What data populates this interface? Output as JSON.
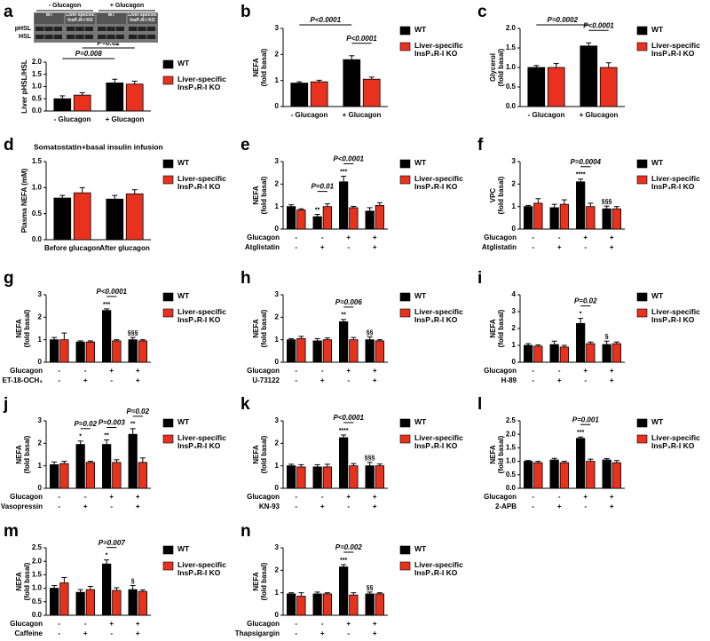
{
  "chart_data": [
    {
      "type": "bar",
      "panel": "a",
      "ylabel": "Liver pHSL/HSL",
      "blot": {
        "groups": [
          "- Glucagon",
          "+ Glucagon"
        ],
        "lanes": [
          "WT",
          "Liver-specific\nInsP₃R-I KO",
          "WT",
          "Liver-specific\nInsP₃R-I KO"
        ],
        "bands": [
          "pHSL",
          "HSL"
        ]
      },
      "categories": [
        "- Glucagon",
        "+ Glucagon"
      ],
      "series": [
        {
          "name": "WT",
          "color": "#000000",
          "values": [
            0.5,
            1.15
          ],
          "errors": [
            0.12,
            0.15
          ]
        },
        {
          "name": "Liver-specific\nInsP₃R-I KO",
          "color": "#e8321e",
          "values": [
            0.65,
            1.1
          ],
          "errors": [
            0.1,
            0.12
          ]
        }
      ],
      "group_pvalues": [
        "P=0.008",
        "P=0.02"
      ],
      "ylim": [
        0,
        2
      ],
      "yticks": [
        {
          "value": 0,
          "label": "0.0"
        },
        0.5,
        {
          "value": 1,
          "label": "1.0"
        },
        1.5,
        {
          "value": 2,
          "label": "2.0"
        }
      ]
    },
    {
      "type": "bar",
      "panel": "b",
      "ylabel": "NEFA",
      "ylabel_unit": "(fold basal)",
      "categories": [
        "- Glucagon",
        "+ Glucagon"
      ],
      "series": [
        {
          "name": "WT",
          "color": "#000000",
          "values": [
            0.9,
            1.8
          ],
          "errors": [
            0.05,
            0.15
          ]
        },
        {
          "name": "Liver-specific\nInsP₃R-I KO",
          "color": "#e8321e",
          "values": [
            0.95,
            1.05
          ],
          "errors": [
            0.06,
            0.08
          ]
        }
      ],
      "group_pvalues": [
        "P<0.0001",
        null
      ],
      "category_pvalues": [
        null,
        "P<0.0001"
      ],
      "ylim": [
        0,
        3
      ],
      "yticks": [
        0,
        1,
        2,
        3
      ]
    },
    {
      "type": "bar",
      "panel": "c",
      "ylabel": "Glycerol",
      "ylabel_unit": "(fold basal)",
      "categories": [
        "- Glucagon",
        "+ Glucagon"
      ],
      "series": [
        {
          "name": "WT",
          "color": "#000000",
          "values": [
            1.0,
            1.55
          ],
          "errors": [
            0.05,
            0.08
          ]
        },
        {
          "name": "Liver-specific\nInsP₃R-I KO",
          "color": "#e8321e",
          "values": [
            1.0,
            1.0
          ],
          "errors": [
            0.1,
            0.12
          ]
        }
      ],
      "group_pvalues": [
        "P=0.0002",
        null
      ],
      "category_pvalues": [
        null,
        "P<0.0001"
      ],
      "ylim": [
        0,
        2
      ],
      "yticks": [
        {
          "value": 0,
          "label": "0.0"
        },
        0.5,
        {
          "value": 1,
          "label": "1.0"
        },
        1.5,
        {
          "value": 2,
          "label": "2.0"
        }
      ]
    },
    {
      "type": "bar",
      "panel": "d",
      "title": "Somatostatin+basal insulin infusion",
      "ylabel": "Plasma NEFA (mM)",
      "categories": [
        "Before glucagon",
        "After glucagon"
      ],
      "series": [
        {
          "name": "WT",
          "color": "#000000",
          "values": [
            0.8,
            0.78
          ],
          "errors": [
            0.05,
            0.07
          ]
        },
        {
          "name": "Liver-specific\nInsP₃R-I KO",
          "color": "#e8321e",
          "values": [
            0.9,
            0.88
          ],
          "errors": [
            0.1,
            0.08
          ]
        }
      ],
      "ylim": [
        0,
        1.5
      ],
      "yticks": [
        {
          "value": 0,
          "label": "0.0"
        },
        0.5,
        {
          "value": 1,
          "label": "1.0"
        },
        1.5
      ]
    },
    {
      "type": "bar",
      "panel": "e",
      "ylabel": "NEFA",
      "ylabel_unit": "(fold basal)",
      "conditions": [
        {
          "name": "Glucagon",
          "signs": [
            "-",
            "-",
            "+",
            "+"
          ]
        },
        {
          "name": "Atglistatin",
          "signs": [
            "-",
            "+",
            "-",
            "+"
          ]
        }
      ],
      "series": [
        {
          "name": "WT",
          "color": "#000000",
          "values": [
            1.0,
            0.55,
            2.1,
            0.8
          ],
          "errors": [
            0.08,
            0.1,
            0.25,
            0.15
          ],
          "sig": [
            null,
            "**",
            "***",
            null
          ]
        },
        {
          "name": "Liver-specific\nInsP₃R-I KO",
          "color": "#e8321e",
          "values": [
            0.85,
            1.0,
            0.95,
            1.05
          ],
          "errors": [
            0.05,
            0.12,
            0.06,
            0.12
          ]
        }
      ],
      "category_pvalues": [
        null,
        "P=0.01",
        "P<0.0001",
        null
      ],
      "ylim": [
        0,
        3
      ],
      "yticks": [
        0,
        1,
        2,
        3
      ]
    },
    {
      "type": "bar",
      "panel": "f",
      "ylabel": "VPC",
      "ylabel_unit": "(fold basal)",
      "conditions": [
        {
          "name": "Glucagon",
          "signs": [
            "-",
            "-",
            "+",
            "+"
          ]
        },
        {
          "name": "Atglistatin",
          "signs": [
            "-",
            "+",
            "-",
            "+"
          ]
        }
      ],
      "series": [
        {
          "name": "WT",
          "color": "#000000",
          "values": [
            1.0,
            0.95,
            2.1,
            0.9
          ],
          "errors": [
            0.05,
            0.15,
            0.12,
            0.12
          ],
          "sig": [
            null,
            null,
            "****",
            "§§§"
          ]
        },
        {
          "name": "Liver-specific\nInsP₃R-I KO",
          "color": "#e8321e",
          "values": [
            1.15,
            1.1,
            1.0,
            0.9
          ],
          "errors": [
            0.2,
            0.2,
            0.15,
            0.1
          ]
        }
      ],
      "category_pvalues": [
        null,
        null,
        "P=0.0004",
        null
      ],
      "ylim": [
        0,
        3
      ],
      "yticks": [
        0,
        1,
        2,
        3
      ]
    },
    {
      "type": "bar",
      "panel": "g",
      "ylabel": "NEFA",
      "ylabel_unit": "(fold basal)",
      "conditions": [
        {
          "name": "Glucagon",
          "signs": [
            "-",
            "-",
            "+",
            "+"
          ]
        },
        {
          "name": "ET-18-OCH₃",
          "signs": [
            "-",
            "+",
            "-",
            "+"
          ]
        }
      ],
      "series": [
        {
          "name": "WT",
          "color": "#000000",
          "values": [
            1.0,
            0.9,
            2.3,
            1.0
          ],
          "errors": [
            0.1,
            0.05,
            0.07,
            0.1
          ],
          "sig": [
            null,
            null,
            "***",
            "§§§"
          ]
        },
        {
          "name": "Liver-specific\nInsP₃R-I KO",
          "color": "#e8321e",
          "values": [
            1.0,
            0.9,
            0.95,
            0.95
          ],
          "errors": [
            0.3,
            0.05,
            0.05,
            0.05
          ]
        }
      ],
      "category_pvalues": [
        null,
        null,
        "P<0.0001",
        null
      ],
      "ylim": [
        0,
        3
      ],
      "yticks": [
        0,
        1,
        2,
        3
      ]
    },
    {
      "type": "bar",
      "panel": "h",
      "ylabel": "NEFA",
      "ylabel_unit": "(fold basal)",
      "conditions": [
        {
          "name": "Glucagon",
          "signs": [
            "-",
            "-",
            "+",
            "+"
          ]
        },
        {
          "name": "U-73122",
          "signs": [
            "-",
            "+",
            "-",
            "+"
          ]
        }
      ],
      "series": [
        {
          "name": "WT",
          "color": "#000000",
          "values": [
            1.0,
            0.95,
            1.8,
            1.0
          ],
          "errors": [
            0.05,
            0.1,
            0.1,
            0.12
          ],
          "sig": [
            null,
            null,
            "**",
            "§§"
          ]
        },
        {
          "name": "Liver-specific\nInsP₃R-I KO",
          "color": "#e8321e",
          "values": [
            1.05,
            1.0,
            1.0,
            0.95
          ],
          "errors": [
            0.1,
            0.08,
            0.1,
            0.05
          ]
        }
      ],
      "category_pvalues": [
        null,
        null,
        "P=0.006",
        null
      ],
      "ylim": [
        0,
        3
      ],
      "yticks": [
        0,
        1,
        2,
        3
      ]
    },
    {
      "type": "bar",
      "panel": "i",
      "ylabel": "NEFA",
      "ylabel_unit": "(fold basal)",
      "conditions": [
        {
          "name": "Glucagon",
          "signs": [
            "-",
            "-",
            "+",
            "+"
          ]
        },
        {
          "name": "H-89",
          "signs": [
            "-",
            "+",
            "-",
            "+"
          ]
        }
      ],
      "series": [
        {
          "name": "WT",
          "color": "#000000",
          "values": [
            1.0,
            1.05,
            2.3,
            1.05
          ],
          "errors": [
            0.1,
            0.2,
            0.3,
            0.2
          ],
          "sig": [
            null,
            null,
            "*",
            "§"
          ]
        },
        {
          "name": "Liver-specific\nInsP₃R-I KO",
          "color": "#e8321e",
          "values": [
            0.95,
            0.9,
            1.1,
            1.1
          ],
          "errors": [
            0.08,
            0.1,
            0.1,
            0.1
          ]
        }
      ],
      "category_pvalues": [
        null,
        null,
        "P=0.02",
        null
      ],
      "ylim": [
        0,
        4
      ],
      "yticks": [
        0,
        1,
        2,
        3,
        4
      ]
    },
    {
      "type": "bar",
      "panel": "j",
      "ylabel": "NEFA",
      "ylabel_unit": "(fold basal)",
      "conditions": [
        {
          "name": "Glucagon",
          "signs": [
            "-",
            "-",
            "+",
            "+"
          ]
        },
        {
          "name": "Vasopressin",
          "signs": [
            "-",
            "+",
            "-",
            "+"
          ]
        }
      ],
      "series": [
        {
          "name": "WT",
          "color": "#000000",
          "values": [
            1.05,
            1.95,
            1.95,
            2.4
          ],
          "errors": [
            0.12,
            0.15,
            0.2,
            0.25
          ],
          "sig": [
            null,
            "*",
            "**",
            "**"
          ]
        },
        {
          "name": "Liver-specific\nInsP₃R-I KO",
          "color": "#e8321e",
          "values": [
            1.1,
            1.15,
            1.15,
            1.15
          ],
          "errors": [
            0.1,
            0.05,
            0.12,
            0.2
          ]
        }
      ],
      "category_pvalues": [
        null,
        "P=0.02",
        "P=0.003",
        "P=0.02"
      ],
      "ylim": [
        0,
        3
      ],
      "yticks": [
        0,
        1,
        2,
        3
      ]
    },
    {
      "type": "bar",
      "panel": "k",
      "ylabel": "NEFA",
      "ylabel_unit": "(fold basal)",
      "conditions": [
        {
          "name": "Glucagon",
          "signs": [
            "-",
            "-",
            "+",
            "+"
          ]
        },
        {
          "name": "KN-93",
          "signs": [
            "-",
            "+",
            "-",
            "+"
          ]
        }
      ],
      "series": [
        {
          "name": "WT",
          "color": "#000000",
          "values": [
            1.0,
            0.95,
            2.25,
            1.0
          ],
          "errors": [
            0.07,
            0.1,
            0.12,
            0.15
          ],
          "sig": [
            null,
            null,
            "****",
            "§§§"
          ]
        },
        {
          "name": "Liver-specific\nInsP₃R-I KO",
          "color": "#e8321e",
          "values": [
            0.95,
            0.95,
            1.0,
            1.0
          ],
          "errors": [
            0.1,
            0.12,
            0.1,
            0.08
          ]
        }
      ],
      "category_pvalues": [
        null,
        null,
        "P<0.0001",
        null
      ],
      "ylim": [
        0,
        3
      ],
      "yticks": [
        0,
        1,
        2,
        3
      ]
    },
    {
      "type": "bar",
      "panel": "l",
      "ylabel": "NEFA",
      "ylabel_unit": "(fold basal)",
      "conditions": [
        {
          "name": "Glucagon",
          "signs": [
            "-",
            "-",
            "+",
            "+"
          ]
        },
        {
          "name": "2-APB",
          "signs": [
            "-",
            "+",
            "-",
            "+"
          ]
        }
      ],
      "series": [
        {
          "name": "WT",
          "color": "#000000",
          "values": [
            1.0,
            1.05,
            1.85,
            1.05
          ],
          "errors": [
            0.03,
            0.06,
            0.05,
            0.05
          ],
          "sig": [
            null,
            null,
            "***",
            null
          ]
        },
        {
          "name": "Liver-specific\nInsP₃R-I KO",
          "color": "#e8321e",
          "values": [
            0.95,
            0.95,
            1.0,
            0.95
          ],
          "errors": [
            0.05,
            0.05,
            0.08,
            0.08
          ]
        }
      ],
      "category_pvalues": [
        null,
        null,
        "P=0.001",
        null
      ],
      "ylim": [
        0,
        2.5
      ],
      "yticks": [
        {
          "value": 0,
          "label": "0.0"
        },
        0.5,
        {
          "value": 1,
          "label": "1.0"
        },
        1.5,
        {
          "value": 2,
          "label": "2.0"
        },
        2.5
      ]
    },
    {
      "type": "bar",
      "panel": "m",
      "ylabel": "NEFA",
      "ylabel_unit": "(fold basal)",
      "conditions": [
        {
          "name": "Glucagon",
          "signs": [
            "-",
            "-",
            "+",
            "+"
          ]
        },
        {
          "name": "Caffeine",
          "signs": [
            "-",
            "+",
            "-",
            "+"
          ]
        }
      ],
      "series": [
        {
          "name": "WT",
          "color": "#000000",
          "values": [
            1.0,
            0.85,
            1.9,
            0.95
          ],
          "errors": [
            0.1,
            0.1,
            0.15,
            0.15
          ],
          "sig": [
            null,
            null,
            "*",
            "§"
          ]
        },
        {
          "name": "Liver-specific\nInsP₃R-I KO",
          "color": "#e8321e",
          "values": [
            1.2,
            0.95,
            0.92,
            0.88
          ],
          "errors": [
            0.2,
            0.12,
            0.1,
            0.06
          ]
        }
      ],
      "category_pvalues": [
        null,
        null,
        "P=0.007",
        null
      ],
      "ylim": [
        0,
        2.5
      ],
      "yticks": [
        {
          "value": 0,
          "label": "0.0"
        },
        0.5,
        {
          "value": 1,
          "label": "1.0"
        },
        1.5,
        {
          "value": 2,
          "label": "2.0"
        },
        2.5
      ]
    },
    {
      "type": "bar",
      "panel": "n",
      "ylabel": "NEFA",
      "ylabel_unit": "(fold basal)",
      "conditions": [
        {
          "name": "Glucagon",
          "signs": [
            "-",
            "-",
            "+",
            "+"
          ]
        },
        {
          "name": "Thapsigargin",
          "signs": [
            "-",
            "+",
            "-",
            "+"
          ]
        }
      ],
      "series": [
        {
          "name": "WT",
          "color": "#000000",
          "values": [
            0.95,
            0.95,
            2.15,
            0.95
          ],
          "errors": [
            0.05,
            0.08,
            0.1,
            0.08
          ],
          "sig": [
            null,
            null,
            "***",
            "§§"
          ]
        },
        {
          "name": "Liver-specific\nInsP₃R-I KO",
          "color": "#e8321e",
          "values": [
            0.85,
            0.95,
            0.9,
            0.95
          ],
          "errors": [
            0.15,
            0.05,
            0.1,
            0.05
          ]
        }
      ],
      "category_pvalues": [
        null,
        null,
        "P=0.002",
        null
      ],
      "ylim": [
        0,
        3
      ],
      "yticks": [
        0,
        1,
        2,
        3
      ]
    }
  ]
}
